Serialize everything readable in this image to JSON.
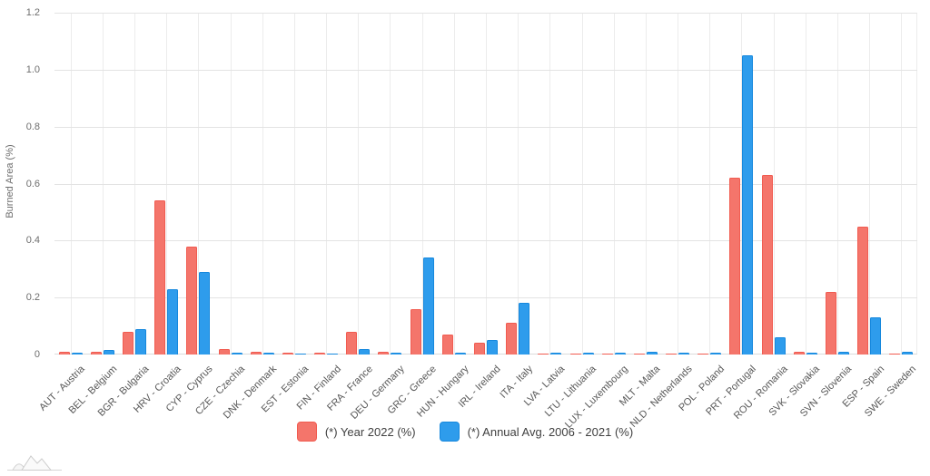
{
  "chart_data": {
    "type": "bar",
    "title": "",
    "xlabel": "",
    "ylabel": "Burned Area (%)",
    "ylim": [
      0,
      1.2
    ],
    "y_ticks": [
      0,
      0.2,
      0.4,
      0.6,
      0.8,
      1.0,
      1.2
    ],
    "y_tick_labels": [
      "0",
      "0.2",
      "0.4",
      "0.6",
      "0.8",
      "1.0",
      "1.2"
    ],
    "grid": true,
    "legend_position": "bottom",
    "categories": [
      "AUT - Austria",
      "BEL - Belgium",
      "BGR - Bulgaria",
      "HRV - Croatia",
      "CYP - Cyprus",
      "CZE - Czechia",
      "DNK - Denmark",
      "EST - Estonia",
      "FIN - Finland",
      "FRA - France",
      "DEU - Germany",
      "GRC - Greece",
      "HUN - Hungary",
      "IRL - Ireland",
      "ITA - Italy",
      "LVA - Latvia",
      "LTU - Lithuania",
      "LUX - Luxembourg",
      "MLT - Malta",
      "NLD - Netherlands",
      "POL - Poland",
      "PRT - Portugal",
      "ROU - Romania",
      "SVK - Slovakia",
      "SVN - Slovenia",
      "ESP - Spain",
      "SWE - Sweden"
    ],
    "series": [
      {
        "id": "year-2022",
        "name": "(*) Year 2022 (%)",
        "color": "#f4756b",
        "border_color": "#f15b50",
        "values": [
          0.01,
          0.01,
          0.08,
          0.54,
          0.38,
          0.02,
          0.01,
          0.005,
          0.005,
          0.08,
          0.01,
          0.16,
          0.07,
          0.04,
          0.11,
          0.003,
          0.002,
          0.002,
          0.003,
          0.003,
          0.003,
          0.62,
          0.63,
          0.01,
          0.22,
          0.45,
          0.003
        ]
      },
      {
        "id": "annual-avg-2006-2021",
        "name": "(*) Annual Avg. 2006 - 2021 (%)",
        "color": "#2e9cec",
        "border_color": "#1688dd",
        "values": [
          0.005,
          0.015,
          0.09,
          0.23,
          0.29,
          0.005,
          0.005,
          0.003,
          0.003,
          0.02,
          0.005,
          0.34,
          0.005,
          0.05,
          0.18,
          0.005,
          0.005,
          0.005,
          0.01,
          0.005,
          0.005,
          1.05,
          0.06,
          0.005,
          0.01,
          0.13,
          0.01
        ]
      }
    ],
    "colors": {
      "grid": "#e3e3e3",
      "axis_text": "#6e6e6e",
      "category_text": "#575757",
      "legend_text": "#404040",
      "background": "#ffffff"
    }
  },
  "watermark": {
    "icon": "mountains-logo-icon"
  }
}
